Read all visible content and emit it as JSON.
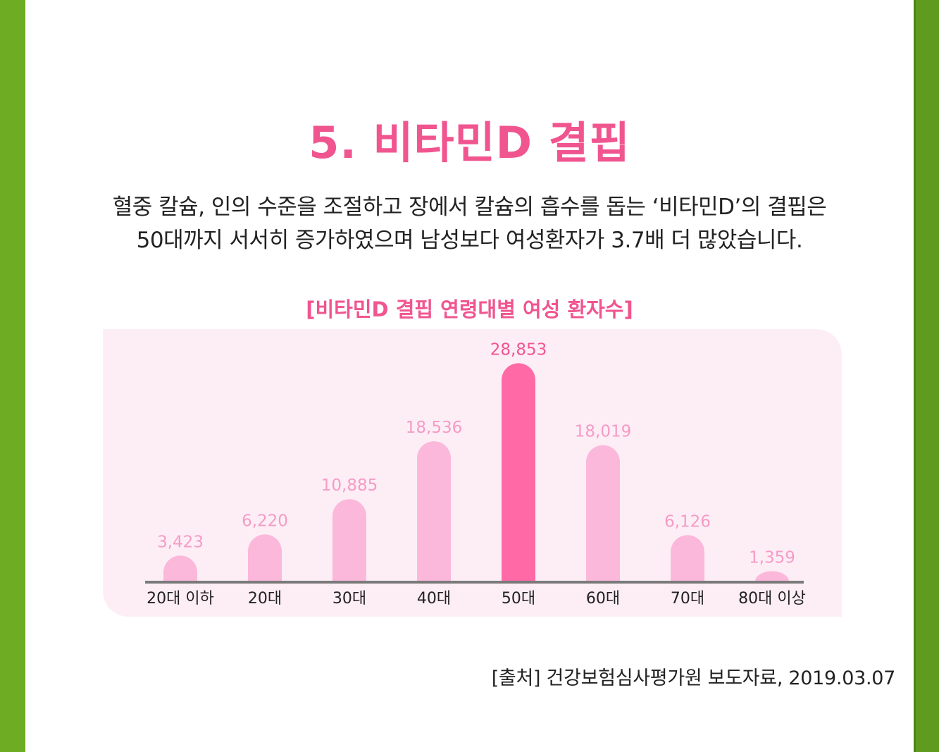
{
  "title": "5. 비타민D 결핍",
  "description": {
    "line1": "혈중 칼슘, 인의 수준을 조절하고 장에서 칼슘의 흡수를 돕는 ‘비타민D’의 결핍은",
    "line2": "50대까지 서서히 증가하였으며 남성보다 여성환자가 3.7배 더 많았습니다."
  },
  "source": "[출처] 건강보험심사평가원 보도자료, 2019.03.07",
  "colors": {
    "accent": "#f0558f",
    "bar": "#fbb8da",
    "bar_highlight": "#fe69a6",
    "panel": "#fdeef6",
    "side_bar": "#6dac23"
  },
  "chart_data": {
    "type": "bar",
    "title": "[비타민D 결핍 연령대별 여성 환자수]",
    "categories": [
      "20대 이하",
      "20대",
      "30대",
      "40대",
      "50대",
      "60대",
      "70대",
      "80대 이상"
    ],
    "values": [
      3423,
      6220,
      10885,
      18536,
      28853,
      18019,
      6126,
      1359
    ],
    "value_labels": [
      "3,423",
      "6,220",
      "10,885",
      "18,536",
      "28,853",
      "18,019",
      "6,126",
      "1,359"
    ],
    "highlight_category": "50대",
    "xlabel": "",
    "ylabel": "",
    "grid": false,
    "legend": "none"
  }
}
